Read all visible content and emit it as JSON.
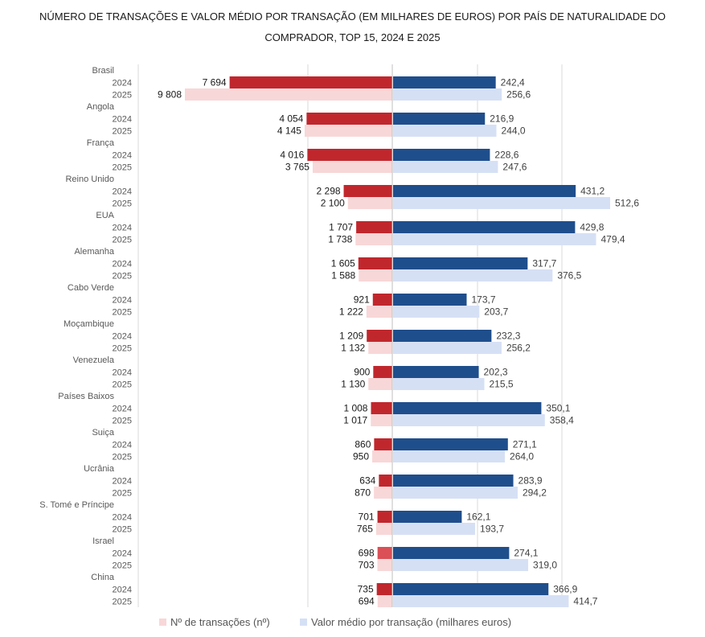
{
  "title": {
    "line1": "NÚMERO DE TRANSAÇÕES E VALOR MÉDIO POR TRANSAÇÃO (EM MILHARES DE EUROS) POR PAÍS DE NATURALIDADE DO",
    "line2": "COMPRADOR, TOP 15, 2024 E 2025"
  },
  "colors": {
    "transactions_2024": "#c0272d",
    "transactions_2025": "#f8d7d8",
    "value_2024": "#1f4e8c",
    "value_2025": "#d6e0f5",
    "israel_2024_transactions": "#db4f57"
  },
  "legend": {
    "transactions": "Nº de transações (nº)",
    "value": "Valor médio por transação (milhares euros)"
  },
  "chart_data": {
    "type": "bar",
    "orientation": "horizontal-diverging",
    "title": "NÚMERO DE TRANSAÇÕES E VALOR MÉDIO POR TRANSAÇÃO (EM MILHARES DE EUROS) POR PAÍS DE NATURALIDADE DO COMPRADOR, TOP 15, 2024 E 2025",
    "years": [
      "2024",
      "2025"
    ],
    "series": [
      {
        "name": "Nº de transações (nº)",
        "side": "left"
      },
      {
        "name": "Valor médio por transação (milhares euros)",
        "side": "right"
      }
    ],
    "categories": [
      {
        "country": "Brasil",
        "transactions": [
          7694,
          9808
        ],
        "transactions_labels": [
          "7 694",
          "9 808"
        ],
        "value": [
          242.4,
          256.6
        ],
        "value_labels": [
          "242,4",
          "256,6"
        ]
      },
      {
        "country": "Angola",
        "transactions": [
          4054,
          4145
        ],
        "transactions_labels": [
          "4 054",
          "4 145"
        ],
        "value": [
          216.9,
          244.0
        ],
        "value_labels": [
          "216,9",
          "244,0"
        ]
      },
      {
        "country": "França",
        "transactions": [
          4016,
          3765
        ],
        "transactions_labels": [
          "4 016",
          "3 765"
        ],
        "value": [
          228.6,
          247.6
        ],
        "value_labels": [
          "228,6",
          "247,6"
        ]
      },
      {
        "country": "Reino Unido",
        "transactions": [
          2298,
          2100
        ],
        "transactions_labels": [
          "2 298",
          "2 100"
        ],
        "value": [
          431.2,
          512.6
        ],
        "value_labels": [
          "431,2",
          "512,6"
        ]
      },
      {
        "country": "EUA",
        "transactions": [
          1707,
          1738
        ],
        "transactions_labels": [
          "1 707",
          "1 738"
        ],
        "value": [
          429.8,
          479.4
        ],
        "value_labels": [
          "429,8",
          "479,4"
        ]
      },
      {
        "country": "Alemanha",
        "transactions": [
          1605,
          1588
        ],
        "transactions_labels": [
          "1 605",
          "1 588"
        ],
        "value": [
          317.7,
          376.5
        ],
        "value_labels": [
          "317,7",
          "376,5"
        ]
      },
      {
        "country": "Cabo Verde",
        "transactions": [
          921,
          1222
        ],
        "transactions_labels": [
          "921",
          "1 222"
        ],
        "value": [
          173.7,
          203.7
        ],
        "value_labels": [
          "173,7",
          "203,7"
        ]
      },
      {
        "country": "Moçambique",
        "transactions": [
          1209,
          1132
        ],
        "transactions_labels": [
          "1 209",
          "1 132"
        ],
        "value": [
          232.3,
          256.2
        ],
        "value_labels": [
          "232,3",
          "256,2"
        ]
      },
      {
        "country": "Venezuela",
        "transactions": [
          900,
          1130
        ],
        "transactions_labels": [
          "900",
          "1 130"
        ],
        "value": [
          202.3,
          215.5
        ],
        "value_labels": [
          "202,3",
          "215,5"
        ]
      },
      {
        "country": "Países Baixos",
        "transactions": [
          1008,
          1017
        ],
        "transactions_labels": [
          "1 008",
          "1 017"
        ],
        "value": [
          350.1,
          358.4
        ],
        "value_labels": [
          "350,1",
          "358,4"
        ]
      },
      {
        "country": "Suiça",
        "transactions": [
          860,
          950
        ],
        "transactions_labels": [
          "860",
          "950"
        ],
        "value": [
          271.1,
          264.0
        ],
        "value_labels": [
          "271,1",
          "264,0"
        ]
      },
      {
        "country": "Ucrânia",
        "transactions": [
          634,
          870
        ],
        "transactions_labels": [
          "634",
          "870"
        ],
        "value": [
          283.9,
          294.2
        ],
        "value_labels": [
          "283,9",
          "294,2"
        ]
      },
      {
        "country": "S. Tomé e Príncipe",
        "transactions": [
          701,
          765
        ],
        "transactions_labels": [
          "701",
          "765"
        ],
        "value": [
          162.1,
          193.7
        ],
        "value_labels": [
          "162,1",
          "193,7"
        ]
      },
      {
        "country": "Israel",
        "transactions": [
          698,
          703
        ],
        "transactions_labels": [
          "698",
          "703"
        ],
        "value": [
          274.1,
          319.0
        ],
        "value_labels": [
          "274,1",
          "319,0"
        ]
      },
      {
        "country": "China",
        "transactions": [
          735,
          694
        ],
        "transactions_labels": [
          "735",
          "694"
        ],
        "value": [
          366.9,
          414.7
        ],
        "value_labels": [
          "366,9",
          "414,7"
        ]
      }
    ],
    "grid": true,
    "legend_position": "bottom"
  }
}
